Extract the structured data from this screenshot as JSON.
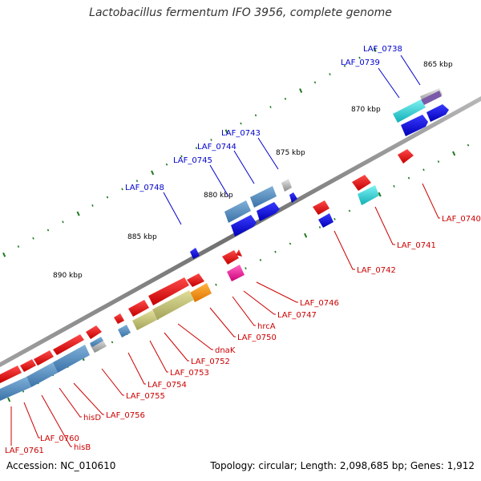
{
  "title": "Lactobacillus fermentum IFO 3956, complete genome",
  "footer": {
    "accession": "Accession: NC_010610",
    "summary": "Topology: circular; Length: 2,098,685 bp; Genes: 1,912"
  },
  "colors": {
    "backbone": "#8c8c8c",
    "tick": "#1f7a1f",
    "label_forward": "#0000cc",
    "label_reverse": "#cc0000",
    "line_forward": "#0000cc",
    "line_reverse": "#cc0000"
  },
  "scale_labels": [
    "865 kbp",
    "870 kbp",
    "875 kbp",
    "880 kbp",
    "885 kbp",
    "890 kbp"
  ],
  "forward_labels": [
    "LAF_0738",
    "LAF_0739",
    "LAF_0743",
    "LAF_0744",
    "LAF_0745",
    "LAF_0748"
  ],
  "reverse_labels": [
    "LAF_0740",
    "LAF_0741",
    "LAF_0742",
    "LAF_0746",
    "LAF_0747",
    "hrcA",
    "LAF_0750",
    "dnaK",
    "LAF_0752",
    "LAF_0753",
    "LAF_0754",
    "LAF_0755",
    "LAF_0756",
    "hisD",
    "hisB",
    "LAF_0760",
    "LAF_0761"
  ]
}
